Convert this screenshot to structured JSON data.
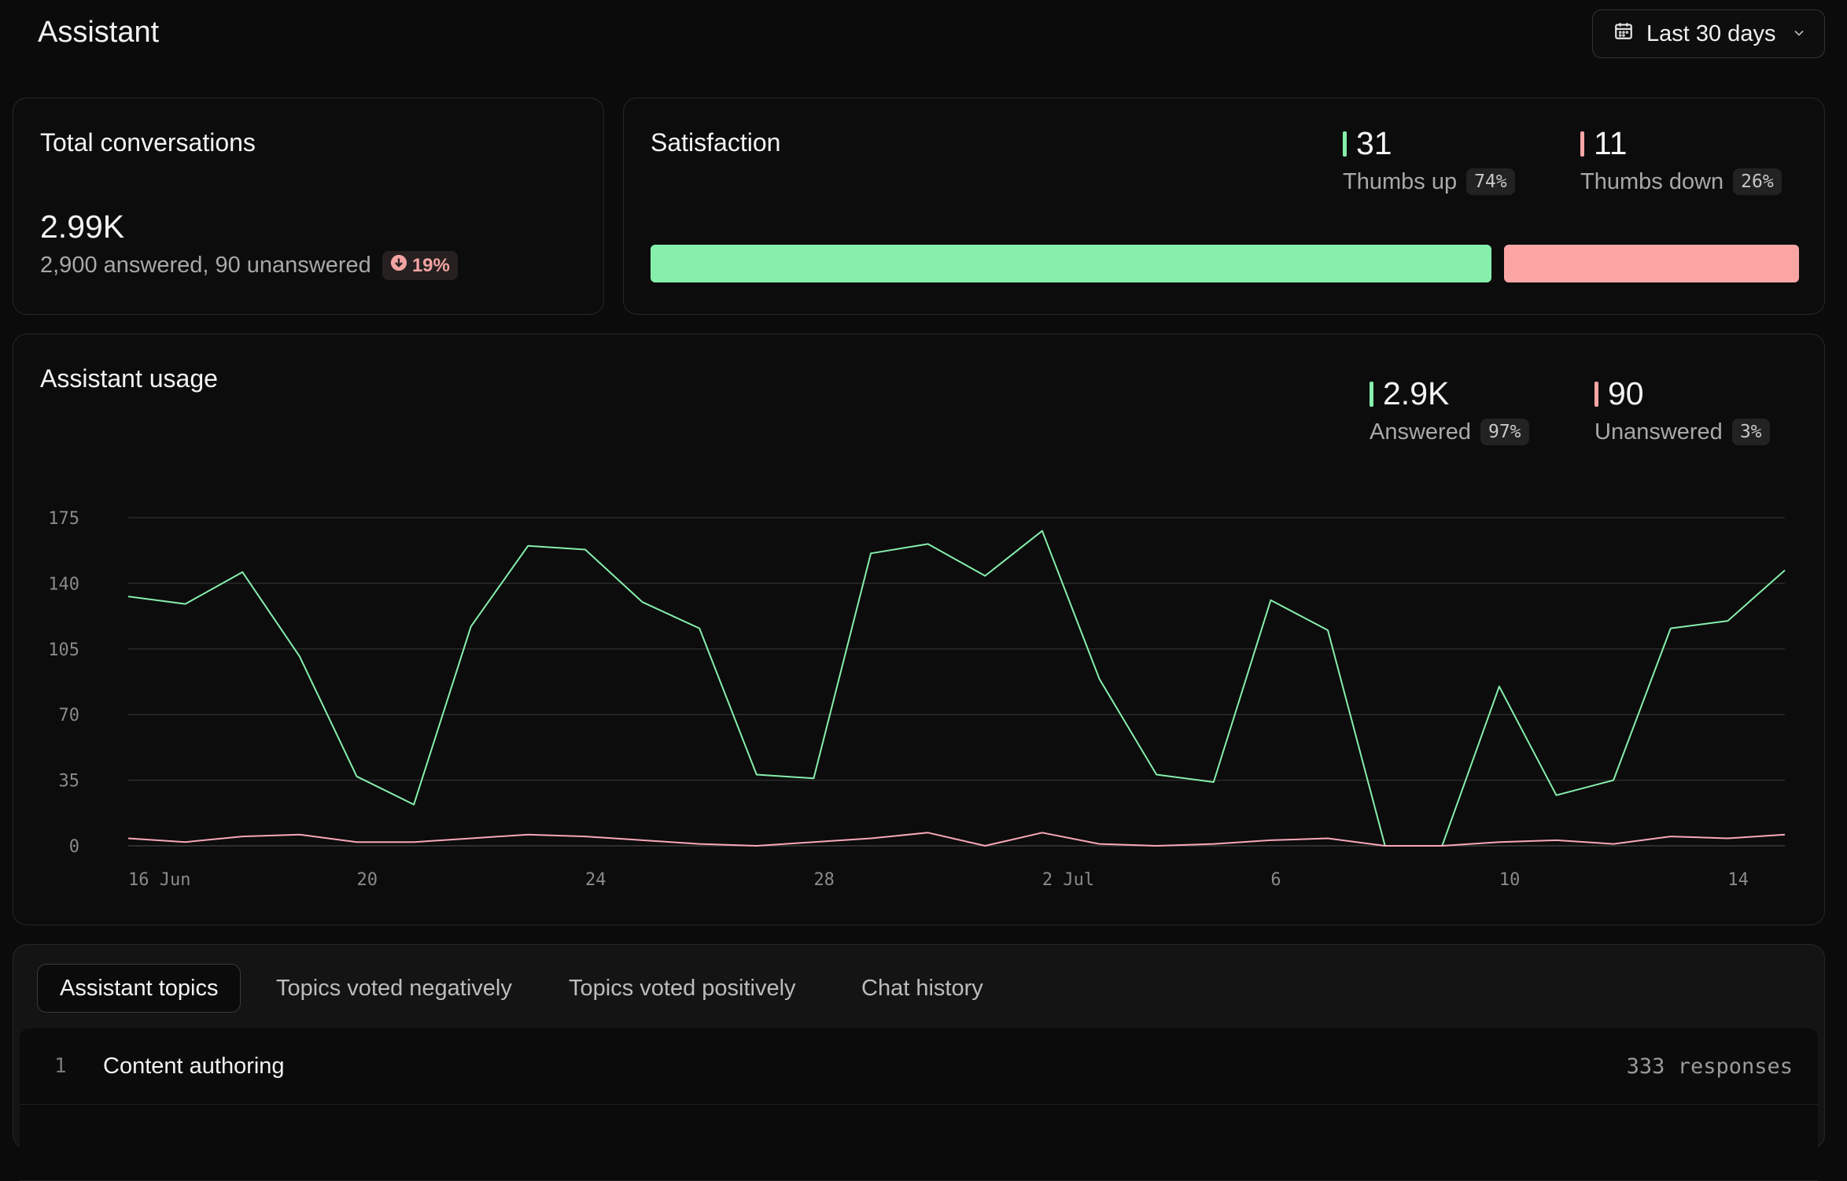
{
  "header": {
    "title": "Assistant",
    "range_label": "Last 30 days"
  },
  "total_conversations": {
    "title": "Total conversations",
    "value": "2.99K",
    "detail": "2,900 answered, 90 unanswered",
    "change": "19%"
  },
  "satisfaction": {
    "title": "Satisfaction",
    "up": {
      "value": "31",
      "label": "Thumbs up",
      "pct": "74%",
      "fraction": 0.74
    },
    "down": {
      "value": "11",
      "label": "Thumbs down",
      "pct": "26%",
      "fraction": 0.26
    },
    "colors": {
      "up": "#86efac",
      "down": "#fca5a5"
    }
  },
  "usage": {
    "title": "Assistant usage",
    "answered": {
      "value": "2.9K",
      "label": "Answered",
      "pct": "97%"
    },
    "unanswered": {
      "value": "90",
      "label": "Unanswered",
      "pct": "3%"
    }
  },
  "chart_data": {
    "type": "line",
    "x": [
      "2024-06-16",
      "2024-06-17",
      "2024-06-18",
      "2024-06-19",
      "2024-06-20",
      "2024-06-21",
      "2024-06-22",
      "2024-06-23",
      "2024-06-24",
      "2024-06-25",
      "2024-06-26",
      "2024-06-27",
      "2024-06-28",
      "2024-06-29",
      "2024-06-30",
      "2024-07-01",
      "2024-07-02",
      "2024-07-03",
      "2024-07-04",
      "2024-07-05",
      "2024-07-06",
      "2024-07-07",
      "2024-07-08",
      "2024-07-09",
      "2024-07-10",
      "2024-07-11",
      "2024-07-12",
      "2024-07-13",
      "2024-07-14",
      "2024-07-15"
    ],
    "x_ticks": [
      {
        "label": "16 Jun",
        "index": 0
      },
      {
        "label": "20",
        "index": 4
      },
      {
        "label": "24",
        "index": 8
      },
      {
        "label": "28",
        "index": 12
      },
      {
        "label": "2 Jul",
        "index": 16
      },
      {
        "label": "6",
        "index": 20
      },
      {
        "label": "10",
        "index": 24
      },
      {
        "label": "14",
        "index": 28
      }
    ],
    "y_ticks": [
      0,
      35,
      70,
      105,
      140,
      175
    ],
    "ylim": [
      0,
      175
    ],
    "grid": true,
    "series": [
      {
        "name": "Answered",
        "color": "#86efac",
        "values": [
          133,
          129,
          146,
          101,
          37,
          22,
          117,
          160,
          158,
          130,
          116,
          38,
          36,
          156,
          161,
          144,
          168,
          89,
          38,
          34,
          131,
          115,
          0,
          0,
          85,
          27,
          35,
          116,
          120,
          147
        ]
      },
      {
        "name": "Unanswered",
        "color": "#f9a8b8",
        "values": [
          4,
          2,
          5,
          6,
          2,
          2,
          4,
          6,
          5,
          3,
          1,
          0,
          2,
          4,
          7,
          0,
          7,
          1,
          0,
          1,
          3,
          4,
          0,
          0,
          2,
          3,
          1,
          5,
          4,
          6
        ]
      }
    ]
  },
  "tabs": [
    "Assistant topics",
    "Topics voted negatively",
    "Topics voted positively",
    "Chat history"
  ],
  "topics": [
    {
      "num": "1",
      "name": "Content authoring",
      "count": "333 responses"
    }
  ]
}
